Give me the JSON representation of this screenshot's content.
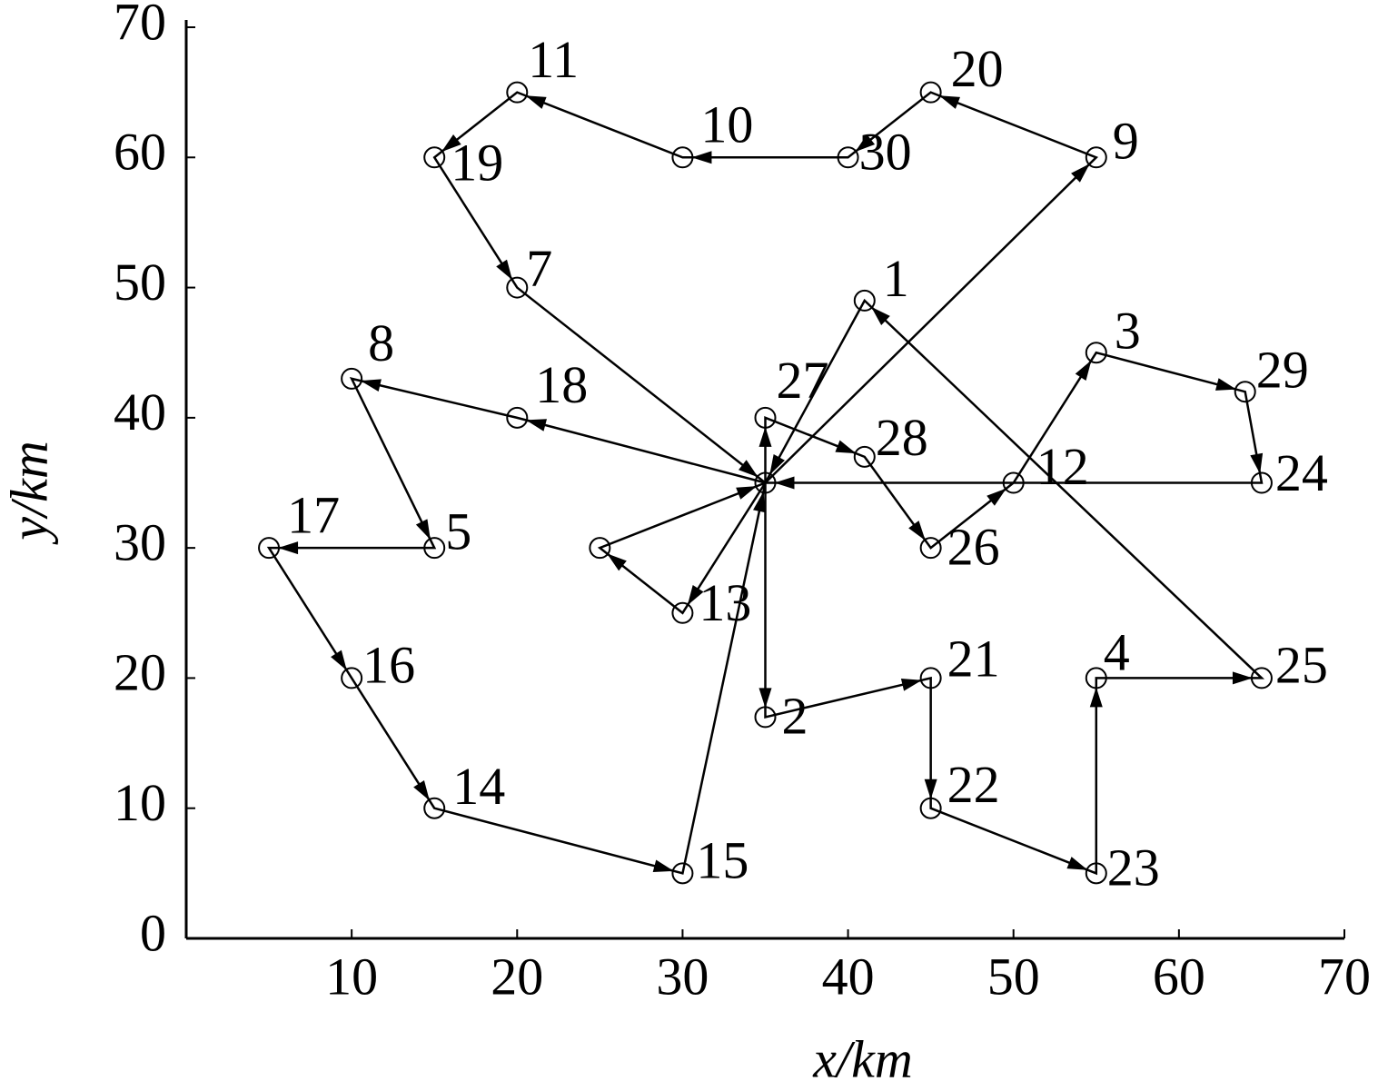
{
  "chart_data": {
    "type": "route",
    "xlabel": "x/km",
    "ylabel": "y/km",
    "xlim": [
      0,
      70
    ],
    "ylim": [
      0,
      70
    ],
    "xticks": [
      10,
      20,
      30,
      40,
      50,
      60,
      70
    ],
    "yticks": [
      0,
      10,
      20,
      30,
      40,
      50,
      60,
      70
    ],
    "color": "#000000",
    "points": {
      "labels": [
        null,
        "1",
        "2",
        "3",
        "4",
        "5",
        null,
        "7",
        "8",
        "9",
        "10",
        "11",
        "12",
        "13",
        "14",
        "15",
        "16",
        "17",
        "18",
        "19",
        "20",
        "21",
        "22",
        "23",
        "24",
        "25",
        "26",
        "27",
        "28",
        "29",
        "30"
      ],
      "x": [
        35,
        41,
        35,
        55,
        55,
        15,
        25,
        20,
        10,
        55,
        30,
        20,
        50,
        30,
        15,
        30,
        10,
        5,
        20,
        15,
        45,
        45,
        45,
        55,
        65,
        65,
        45,
        35,
        41,
        64,
        40
      ],
      "y": [
        35,
        49,
        17,
        45,
        20,
        30,
        30,
        50,
        43,
        60,
        60,
        65,
        35,
        25,
        10,
        5,
        20,
        30,
        40,
        60,
        65,
        20,
        10,
        5,
        35,
        20,
        30,
        40,
        37,
        42,
        60
      ]
    },
    "series": [
      {
        "x": [
          35,
          35,
          41,
          45,
          50,
          55,
          64,
          65,
          35
        ],
        "y": [
          35,
          40,
          37,
          30,
          35,
          45,
          42,
          35,
          35
        ]
      },
      {
        "x": [
          35,
          55,
          45,
          40,
          30,
          20,
          15,
          20,
          35
        ],
        "y": [
          35,
          60,
          65,
          60,
          60,
          65,
          60,
          50,
          35
        ]
      },
      {
        "x": [
          35,
          20,
          10,
          15,
          5,
          10,
          15,
          30,
          35
        ],
        "y": [
          35,
          40,
          43,
          30,
          30,
          20,
          10,
          5,
          35
        ]
      },
      {
        "x": [
          35,
          30,
          25,
          35
        ],
        "y": [
          35,
          25,
          30,
          35
        ]
      },
      {
        "x": [
          35,
          35,
          45,
          45,
          55,
          55,
          65,
          41,
          35
        ],
        "y": [
          35,
          17,
          20,
          10,
          5,
          20,
          20,
          49,
          35
        ]
      }
    ]
  }
}
